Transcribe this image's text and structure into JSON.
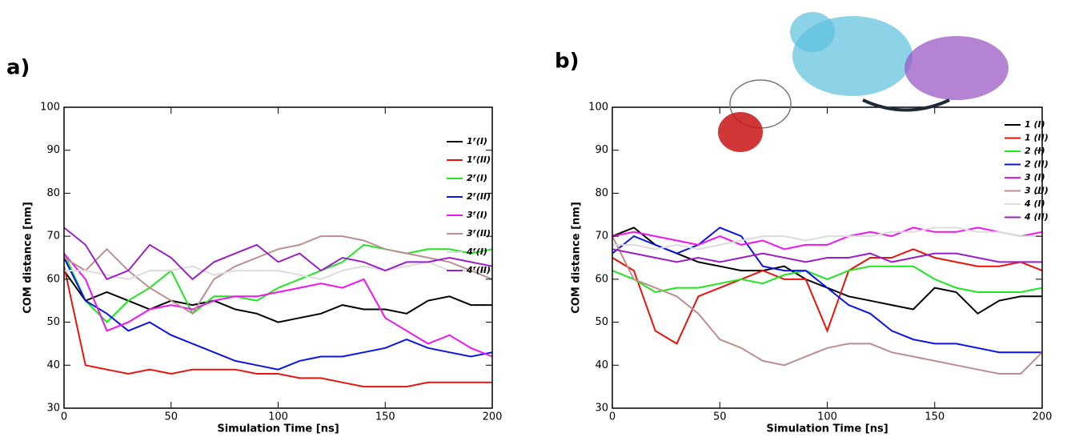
{
  "chart_data": [
    {
      "type": "line",
      "panel_label": "a)",
      "xlabel": "Simulation Time [ns]",
      "ylabel": "COM distance [nm]",
      "x": [
        0,
        10,
        20,
        30,
        40,
        50,
        60,
        70,
        80,
        90,
        100,
        110,
        120,
        130,
        140,
        150,
        160,
        170,
        180,
        190,
        200
      ],
      "xlim": [
        0,
        200
      ],
      "xticks": [
        0,
        50,
        100,
        150,
        200
      ],
      "ylim": [
        30,
        100
      ],
      "yticks": [
        30,
        40,
        50,
        60,
        70,
        80,
        90,
        100
      ],
      "grid": false,
      "legend": "upper right",
      "series": [
        {
          "name": "1ᶠ(I)",
          "color": "#000000",
          "values": [
            62,
            55,
            57,
            55,
            53,
            55,
            54,
            55,
            53,
            52,
            50,
            51,
            52,
            54,
            53,
            53,
            52,
            55,
            56,
            54,
            54
          ]
        },
        {
          "name": "1ᶠ(II)",
          "color": "#e8140c",
          "values": [
            63,
            40,
            39,
            38,
            39,
            38,
            39,
            39,
            39,
            38,
            38,
            37,
            37,
            36,
            35,
            35,
            35,
            36,
            36,
            36,
            36
          ]
        },
        {
          "name": "2ᶠ(I)",
          "color": "#1fe61f",
          "values": [
            66,
            55,
            50,
            55,
            58,
            62,
            52,
            56,
            56,
            55,
            58,
            60,
            62,
            64,
            68,
            67,
            66,
            67,
            67,
            66,
            67
          ]
        },
        {
          "name": "2ᶠ(II)",
          "color": "#0a14e6",
          "values": [
            65,
            55,
            52,
            48,
            50,
            47,
            45,
            43,
            41,
            40,
            39,
            41,
            42,
            42,
            43,
            44,
            46,
            44,
            43,
            42,
            43
          ]
        },
        {
          "name": "3ᶠ(I)",
          "color": "#f014f0",
          "values": [
            66,
            60,
            48,
            50,
            53,
            54,
            53,
            55,
            56,
            56,
            57,
            58,
            59,
            58,
            60,
            51,
            48,
            45,
            47,
            44,
            42
          ]
        },
        {
          "name": "3ᶠ(II)",
          "color": "#bc8f8f",
          "values": [
            65,
            62,
            67,
            62,
            58,
            55,
            52,
            60,
            63,
            65,
            67,
            68,
            70,
            70,
            69,
            67,
            66,
            65,
            64,
            62,
            60
          ]
        },
        {
          "name": "4ᶠ(I)",
          "color": "#dcdcdc",
          "values": [
            62,
            62,
            61,
            60,
            62,
            62,
            63,
            61,
            62,
            62,
            62,
            61,
            60,
            62,
            63,
            62,
            63,
            64,
            62,
            62,
            62
          ]
        },
        {
          "name": "4ᶠ(II)",
          "color": "#9a1fc8",
          "values": [
            72,
            68,
            60,
            62,
            68,
            65,
            60,
            64,
            66,
            68,
            64,
            66,
            62,
            65,
            64,
            62,
            64,
            64,
            65,
            64,
            63
          ]
        }
      ]
    },
    {
      "type": "line",
      "panel_label": "b)",
      "xlabel": "Simulation Time [ns]",
      "ylabel": "COM distance [nm]",
      "x": [
        0,
        10,
        20,
        30,
        40,
        50,
        60,
        70,
        80,
        90,
        100,
        110,
        120,
        130,
        140,
        150,
        160,
        170,
        180,
        190,
        200
      ],
      "xlim": [
        0,
        200
      ],
      "xticks": [
        0,
        50,
        100,
        150,
        200
      ],
      "ylim": [
        30,
        100
      ],
      "yticks": [
        30,
        40,
        50,
        60,
        70,
        80,
        90,
        100
      ],
      "grid": false,
      "legend": "upper right",
      "series": [
        {
          "name": "1 (I)",
          "color": "#000000",
          "values": [
            70,
            72,
            68,
            66,
            64,
            63,
            62,
            62,
            63,
            60,
            58,
            56,
            55,
            54,
            53,
            58,
            57,
            52,
            55,
            56,
            56
          ]
        },
        {
          "name": "1 (II)",
          "color": "#e8140c",
          "values": [
            65,
            62,
            48,
            45,
            56,
            58,
            60,
            62,
            60,
            60,
            48,
            62,
            65,
            65,
            67,
            65,
            64,
            63,
            63,
            64,
            62
          ]
        },
        {
          "name": "2 (I)",
          "color": "#1fe61f",
          "values": [
            62,
            60,
            57,
            58,
            58,
            59,
            60,
            59,
            61,
            62,
            60,
            62,
            63,
            63,
            63,
            60,
            58,
            57,
            57,
            57,
            58
          ]
        },
        {
          "name": "2 (II)",
          "color": "#0a14e6",
          "values": [
            66,
            70,
            68,
            66,
            68,
            72,
            70,
            63,
            62,
            62,
            58,
            54,
            52,
            48,
            46,
            45,
            45,
            44,
            43,
            43,
            43
          ]
        },
        {
          "name": "3 (I)",
          "color": "#f014f0",
          "values": [
            70,
            71,
            70,
            69,
            68,
            70,
            68,
            69,
            67,
            68,
            68,
            70,
            71,
            70,
            72,
            71,
            71,
            72,
            71,
            70,
            71
          ]
        },
        {
          "name": "3 (II)",
          "color": "#bc8f8f",
          "values": [
            70,
            60,
            58,
            56,
            52,
            46,
            44,
            41,
            40,
            42,
            44,
            45,
            45,
            43,
            42,
            41,
            40,
            39,
            38,
            38,
            43
          ]
        },
        {
          "name": "4 (I)",
          "color": "#dcdcdc",
          "values": [
            68,
            68,
            67,
            68,
            67,
            68,
            69,
            70,
            70,
            69,
            70,
            70,
            70,
            71,
            71,
            72,
            72,
            71,
            71,
            70,
            70
          ]
        },
        {
          "name": "4 (II)",
          "color": "#9a1fc8",
          "values": [
            67,
            66,
            65,
            64,
            65,
            64,
            65,
            66,
            65,
            64,
            65,
            65,
            66,
            64,
            65,
            66,
            66,
            65,
            64,
            64,
            64
          ]
        }
      ]
    }
  ]
}
